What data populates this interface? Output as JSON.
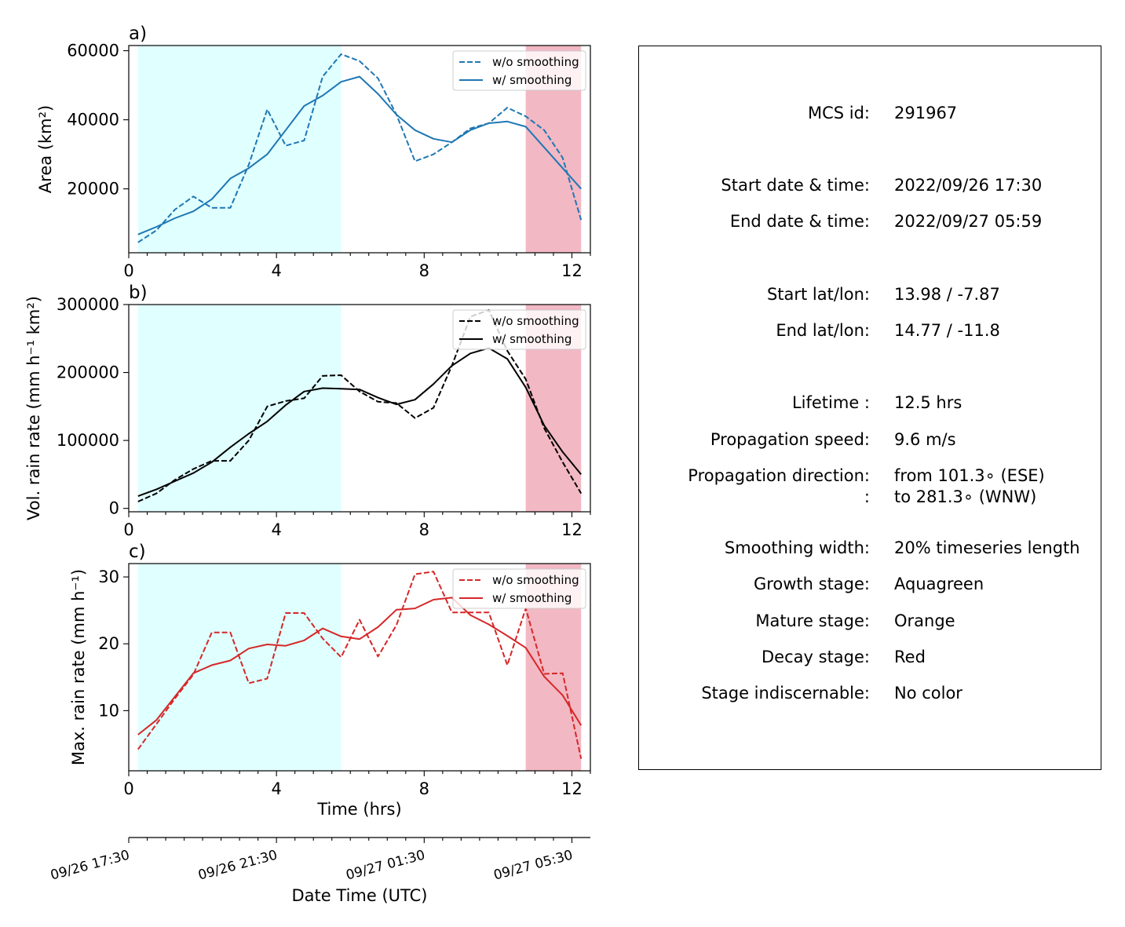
{
  "colors": {
    "growth_shade": "#e0ffff",
    "decay_shade": "#f2b8c3",
    "panel_a": "#1f77b4",
    "panel_b": "#000000",
    "panel_c": "#d62728"
  },
  "chart_data": [
    {
      "type": "line",
      "panel_label": "a)",
      "ylabel": "Area  (km²)",
      "xlabel": "",
      "xlim": [
        0,
        12.5
      ],
      "ylim": [
        1500,
        61500
      ],
      "xticks": [
        0,
        4,
        8,
        12
      ],
      "yticks": [
        20000,
        40000,
        60000
      ],
      "grid": false,
      "legend_position": "top-right",
      "shaded_regions": [
        {
          "stage": "growth",
          "x0": 0.25,
          "x1": 5.75
        },
        {
          "stage": "decay",
          "x0": 10.75,
          "x1": 12.25
        }
      ],
      "x": [
        0.25,
        0.75,
        1.25,
        1.75,
        2.25,
        2.75,
        3.25,
        3.75,
        4.25,
        4.75,
        5.25,
        5.75,
        6.25,
        6.75,
        7.25,
        7.75,
        8.25,
        8.75,
        9.25,
        9.75,
        10.25,
        10.75,
        11.25,
        11.75,
        12.25
      ],
      "series": [
        {
          "name": "w/o smoothing",
          "style": "dashed",
          "values": [
            4500,
            8000,
            14000,
            17800,
            14500,
            14500,
            27000,
            43000,
            32500,
            34000,
            52500,
            59000,
            57000,
            52000,
            41500,
            28000,
            30000,
            33500,
            37500,
            39000,
            43500,
            41000,
            37000,
            29000,
            11000
          ]
        },
        {
          "name": "w/ smoothing",
          "style": "solid",
          "values": [
            6800,
            9000,
            11500,
            13500,
            17000,
            23000,
            26000,
            30000,
            37000,
            44000,
            47000,
            51000,
            52500,
            47500,
            41500,
            37000,
            34500,
            33500,
            37000,
            39000,
            39500,
            38000,
            32000,
            26000,
            20000
          ]
        }
      ]
    },
    {
      "type": "line",
      "panel_label": "b)",
      "ylabel": "Vol. rain rate (mm h⁻¹ km²)",
      "xlabel": "",
      "xlim": [
        0,
        12.5
      ],
      "ylim": [
        -5000,
        300000
      ],
      "xticks": [
        0,
        4,
        8,
        12
      ],
      "yticks": [
        0,
        100000,
        200000,
        300000
      ],
      "grid": false,
      "legend_position": "top-right",
      "shaded_regions": [
        {
          "stage": "growth",
          "x0": 0.25,
          "x1": 5.75
        },
        {
          "stage": "decay",
          "x0": 10.75,
          "x1": 12.25
        }
      ],
      "x": [
        0.25,
        0.75,
        1.25,
        1.75,
        2.25,
        2.75,
        3.25,
        3.75,
        4.25,
        4.75,
        5.25,
        5.75,
        6.25,
        6.75,
        7.25,
        7.75,
        8.25,
        8.75,
        9.25,
        9.75,
        10.25,
        10.75,
        11.25,
        11.75,
        12.25
      ],
      "series": [
        {
          "name": "w/o smoothing",
          "style": "dashed",
          "values": [
            10000,
            22000,
            42000,
            58000,
            70000,
            70000,
            100000,
            150000,
            158000,
            162000,
            195000,
            196000,
            172000,
            157000,
            155000,
            133000,
            148000,
            210000,
            282000,
            292000,
            232000,
            190000,
            118000,
            68000,
            22000
          ]
        },
        {
          "name": "w/ smoothing",
          "style": "solid",
          "values": [
            18000,
            28000,
            40000,
            52000,
            68000,
            90000,
            110000,
            128000,
            152000,
            172000,
            177000,
            176000,
            175000,
            163000,
            153000,
            160000,
            183000,
            210000,
            228000,
            236000,
            220000,
            178000,
            122000,
            83000,
            50000
          ]
        }
      ]
    },
    {
      "type": "line",
      "panel_label": "c)",
      "ylabel": "Max. rain rate  (mm h⁻¹)",
      "xlabel": "Time (hrs)",
      "xlim": [
        0,
        12.5
      ],
      "ylim": [
        1,
        32
      ],
      "xticks": [
        0,
        4,
        8,
        12
      ],
      "yticks": [
        10,
        20,
        30
      ],
      "grid": false,
      "legend_position": "top-right",
      "shaded_regions": [
        {
          "stage": "growth",
          "x0": 0.25,
          "x1": 5.75
        },
        {
          "stage": "decay",
          "x0": 10.75,
          "x1": 12.25
        }
      ],
      "x": [
        0.25,
        0.75,
        1.25,
        1.75,
        2.25,
        2.75,
        3.25,
        3.75,
        4.25,
        4.75,
        5.25,
        5.75,
        6.25,
        6.75,
        7.25,
        7.75,
        8.25,
        8.75,
        9.25,
        9.75,
        10.25,
        10.75,
        11.25,
        11.75,
        12.25
      ],
      "series": [
        {
          "name": "w/o smoothing",
          "style": "dashed",
          "values": [
            4.2,
            8.0,
            11.8,
            15.4,
            21.7,
            21.7,
            14.1,
            14.8,
            24.6,
            24.6,
            20.8,
            18.0,
            23.6,
            18.1,
            22.8,
            30.4,
            30.8,
            24.7,
            24.7,
            24.7,
            16.8,
            25.3,
            15.5,
            15.6,
            2.8
          ]
        },
        {
          "name": "w/ smoothing",
          "style": "solid",
          "values": [
            6.4,
            8.6,
            12.1,
            15.6,
            16.8,
            17.5,
            19.3,
            19.9,
            19.7,
            20.5,
            22.3,
            21.1,
            20.7,
            22.5,
            25.1,
            25.3,
            26.6,
            26.9,
            24.3,
            22.9,
            21.2,
            19.4,
            15.1,
            12.3,
            7.8
          ]
        }
      ]
    }
  ],
  "datetime_axis": {
    "label": "Date Time (UTC)",
    "tick_labels": [
      "09/26 17:30",
      "09/26 21:30",
      "09/27 01:30",
      "09/27 05:30"
    ],
    "major_ticks": [
      0,
      4,
      8,
      12
    ],
    "minor_step": 0.5
  },
  "info": {
    "rows": [
      {
        "label": "MCS id:",
        "value": "291967"
      },
      {
        "label": "Start date & time:",
        "value": "2022/09/26 17:30"
      },
      {
        "label": "End date & time:",
        "value": "2022/09/27 05:59"
      },
      {
        "label": "Start lat/lon:",
        "value": "13.98 / -7.87"
      },
      {
        "label": "End lat/lon:",
        "value": "14.77 / -11.8"
      },
      {
        "label": "Lifetime :",
        "value": "12.5 hrs"
      },
      {
        "label": "Propagation speed:",
        "value": "9.6 m/s"
      },
      {
        "label": "Propagation direction:",
        "value": "from 101.3∘ (ESE)"
      },
      {
        "label": ":",
        "value": "to   281.3∘ (WNW)"
      },
      {
        "label": "Smoothing width:",
        "value": "20% timeseries length"
      },
      {
        "label": "Growth stage:",
        "value": "Aquagreen"
      },
      {
        "label": "Mature stage:",
        "value": "Orange"
      },
      {
        "label": "Decay stage:",
        "value": "Red"
      },
      {
        "label": "Stage indiscernable:",
        "value": "No color"
      }
    ]
  }
}
